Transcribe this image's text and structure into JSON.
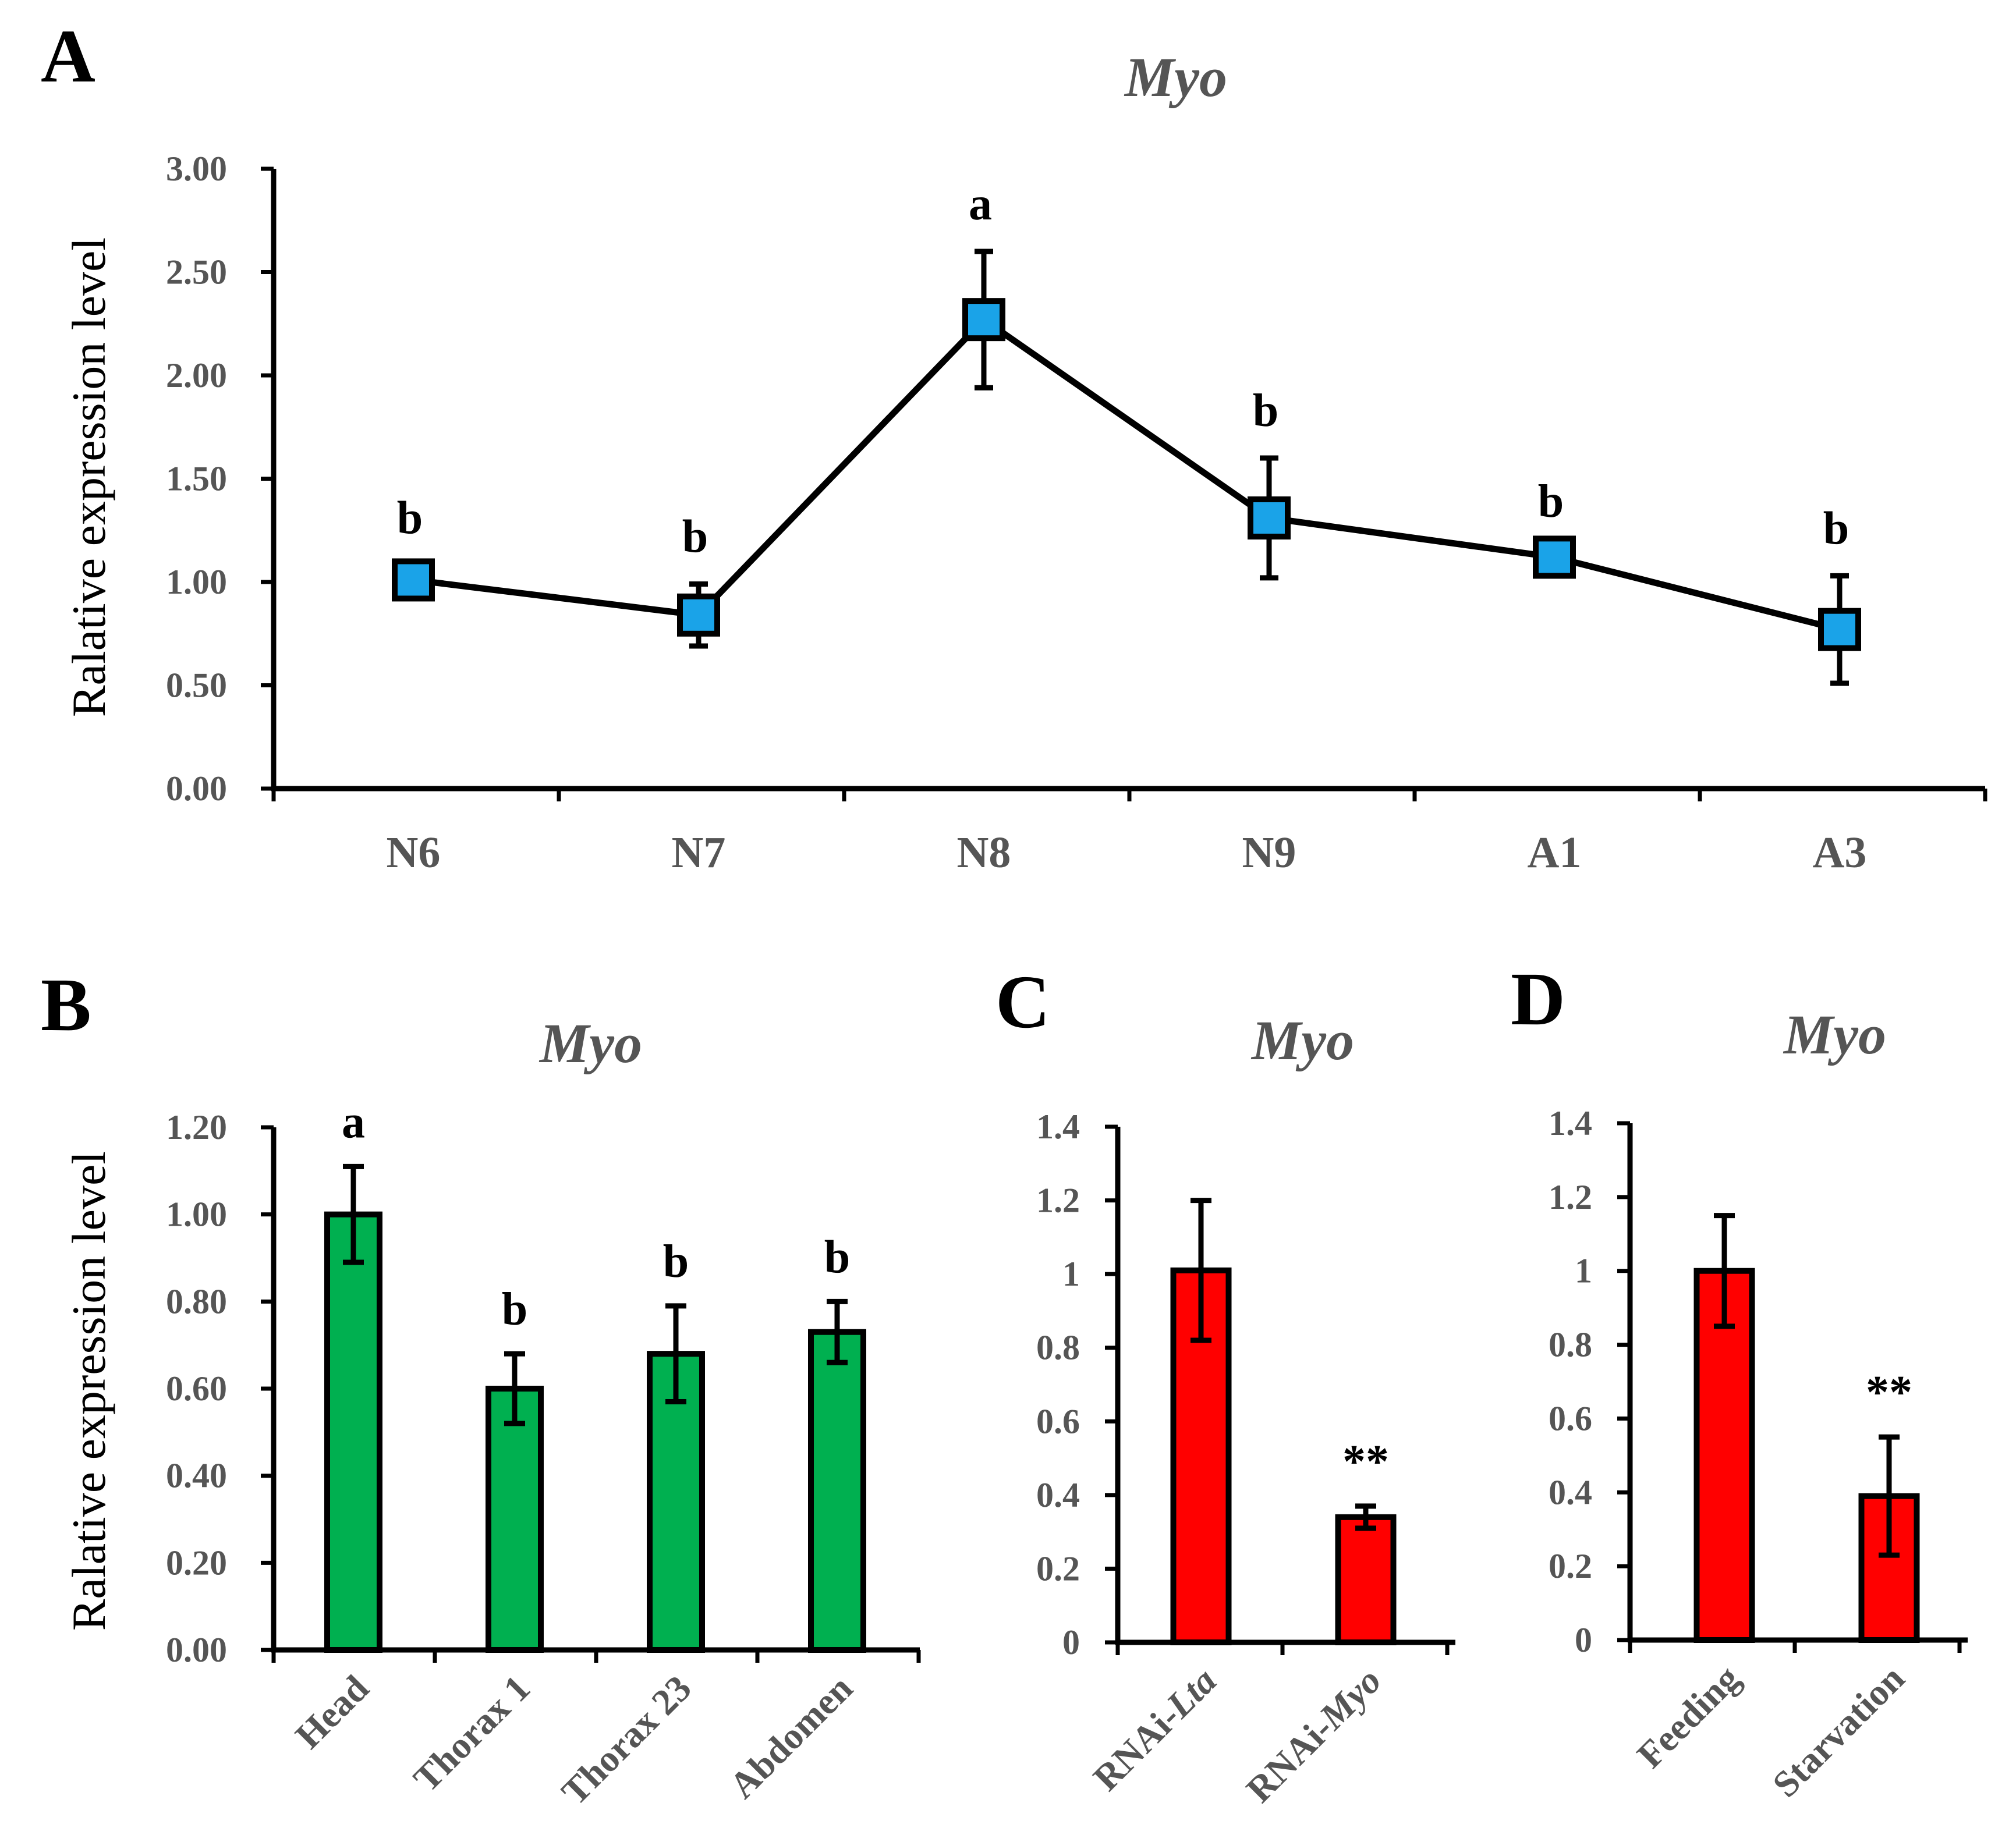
{
  "chart_data": [
    {
      "panel": "A",
      "type": "line",
      "title": "Myo",
      "ylabel": "Ralative expression level",
      "xlabel": "",
      "ylim": [
        0,
        3
      ],
      "yticks": [
        "0.00",
        "0.50",
        "1.00",
        "1.50",
        "2.00",
        "2.50",
        "3.00"
      ],
      "categories": [
        "N6",
        "N7",
        "N8",
        "N9",
        "A1",
        "A3"
      ],
      "series": [
        {
          "name": "Myo",
          "color": "#1aa3e8",
          "values": [
            1.01,
            0.84,
            2.27,
            1.31,
            1.12,
            0.77
          ],
          "errors": [
            0.07,
            0.15,
            0.33,
            0.29,
            0.04,
            0.26
          ]
        }
      ],
      "annotations": [
        "b",
        "b",
        "a",
        "b",
        "b",
        "b"
      ]
    },
    {
      "panel": "B",
      "type": "bar",
      "title": "Myo",
      "ylabel": "Ralative expression level",
      "xlabel": "",
      "ylim": [
        0,
        1.2
      ],
      "yticks": [
        "0.00",
        "0.20",
        "0.40",
        "0.60",
        "0.80",
        "1.00",
        "1.20"
      ],
      "categories": [
        "Head",
        "Thorax 1",
        "Thorax 23",
        "Abdomen"
      ],
      "series": [
        {
          "name": "Myo",
          "color": "#00b050",
          "values": [
            1.0,
            0.6,
            0.68,
            0.73
          ],
          "errors": [
            0.11,
            0.08,
            0.11,
            0.07
          ]
        }
      ],
      "annotations": [
        "a",
        "b",
        "b",
        "b"
      ]
    },
    {
      "panel": "C",
      "type": "bar",
      "title": "Myo",
      "ylabel": "",
      "xlabel": "",
      "ylim": [
        0,
        1.4
      ],
      "yticks": [
        "0",
        "0.2",
        "0.4",
        "0.6",
        "0.8",
        "1",
        "1.2",
        "1.4"
      ],
      "categories": [
        {
          "prefix": "RNAi-",
          "italic": "Lta"
        },
        {
          "prefix": "RNAi-",
          "italic": "Myo"
        }
      ],
      "series": [
        {
          "name": "Myo",
          "color": "#ff0000",
          "values": [
            1.01,
            0.34
          ],
          "errors": [
            0.19,
            0.03
          ]
        }
      ],
      "annotations": [
        "",
        "**"
      ]
    },
    {
      "panel": "D",
      "type": "bar",
      "title": "Myo",
      "ylabel": "",
      "xlabel": "",
      "ylim": [
        0,
        1.4
      ],
      "yticks": [
        "0",
        "0.2",
        "0.4",
        "0.6",
        "0.8",
        "1",
        "1.2",
        "1.4"
      ],
      "categories": [
        "Feeding",
        "Starvation"
      ],
      "series": [
        {
          "name": "Myo",
          "color": "#ff0000",
          "values": [
            1.0,
            0.39
          ],
          "errors": [
            0.15,
            0.16
          ]
        }
      ],
      "annotations": [
        "",
        "**"
      ]
    }
  ]
}
